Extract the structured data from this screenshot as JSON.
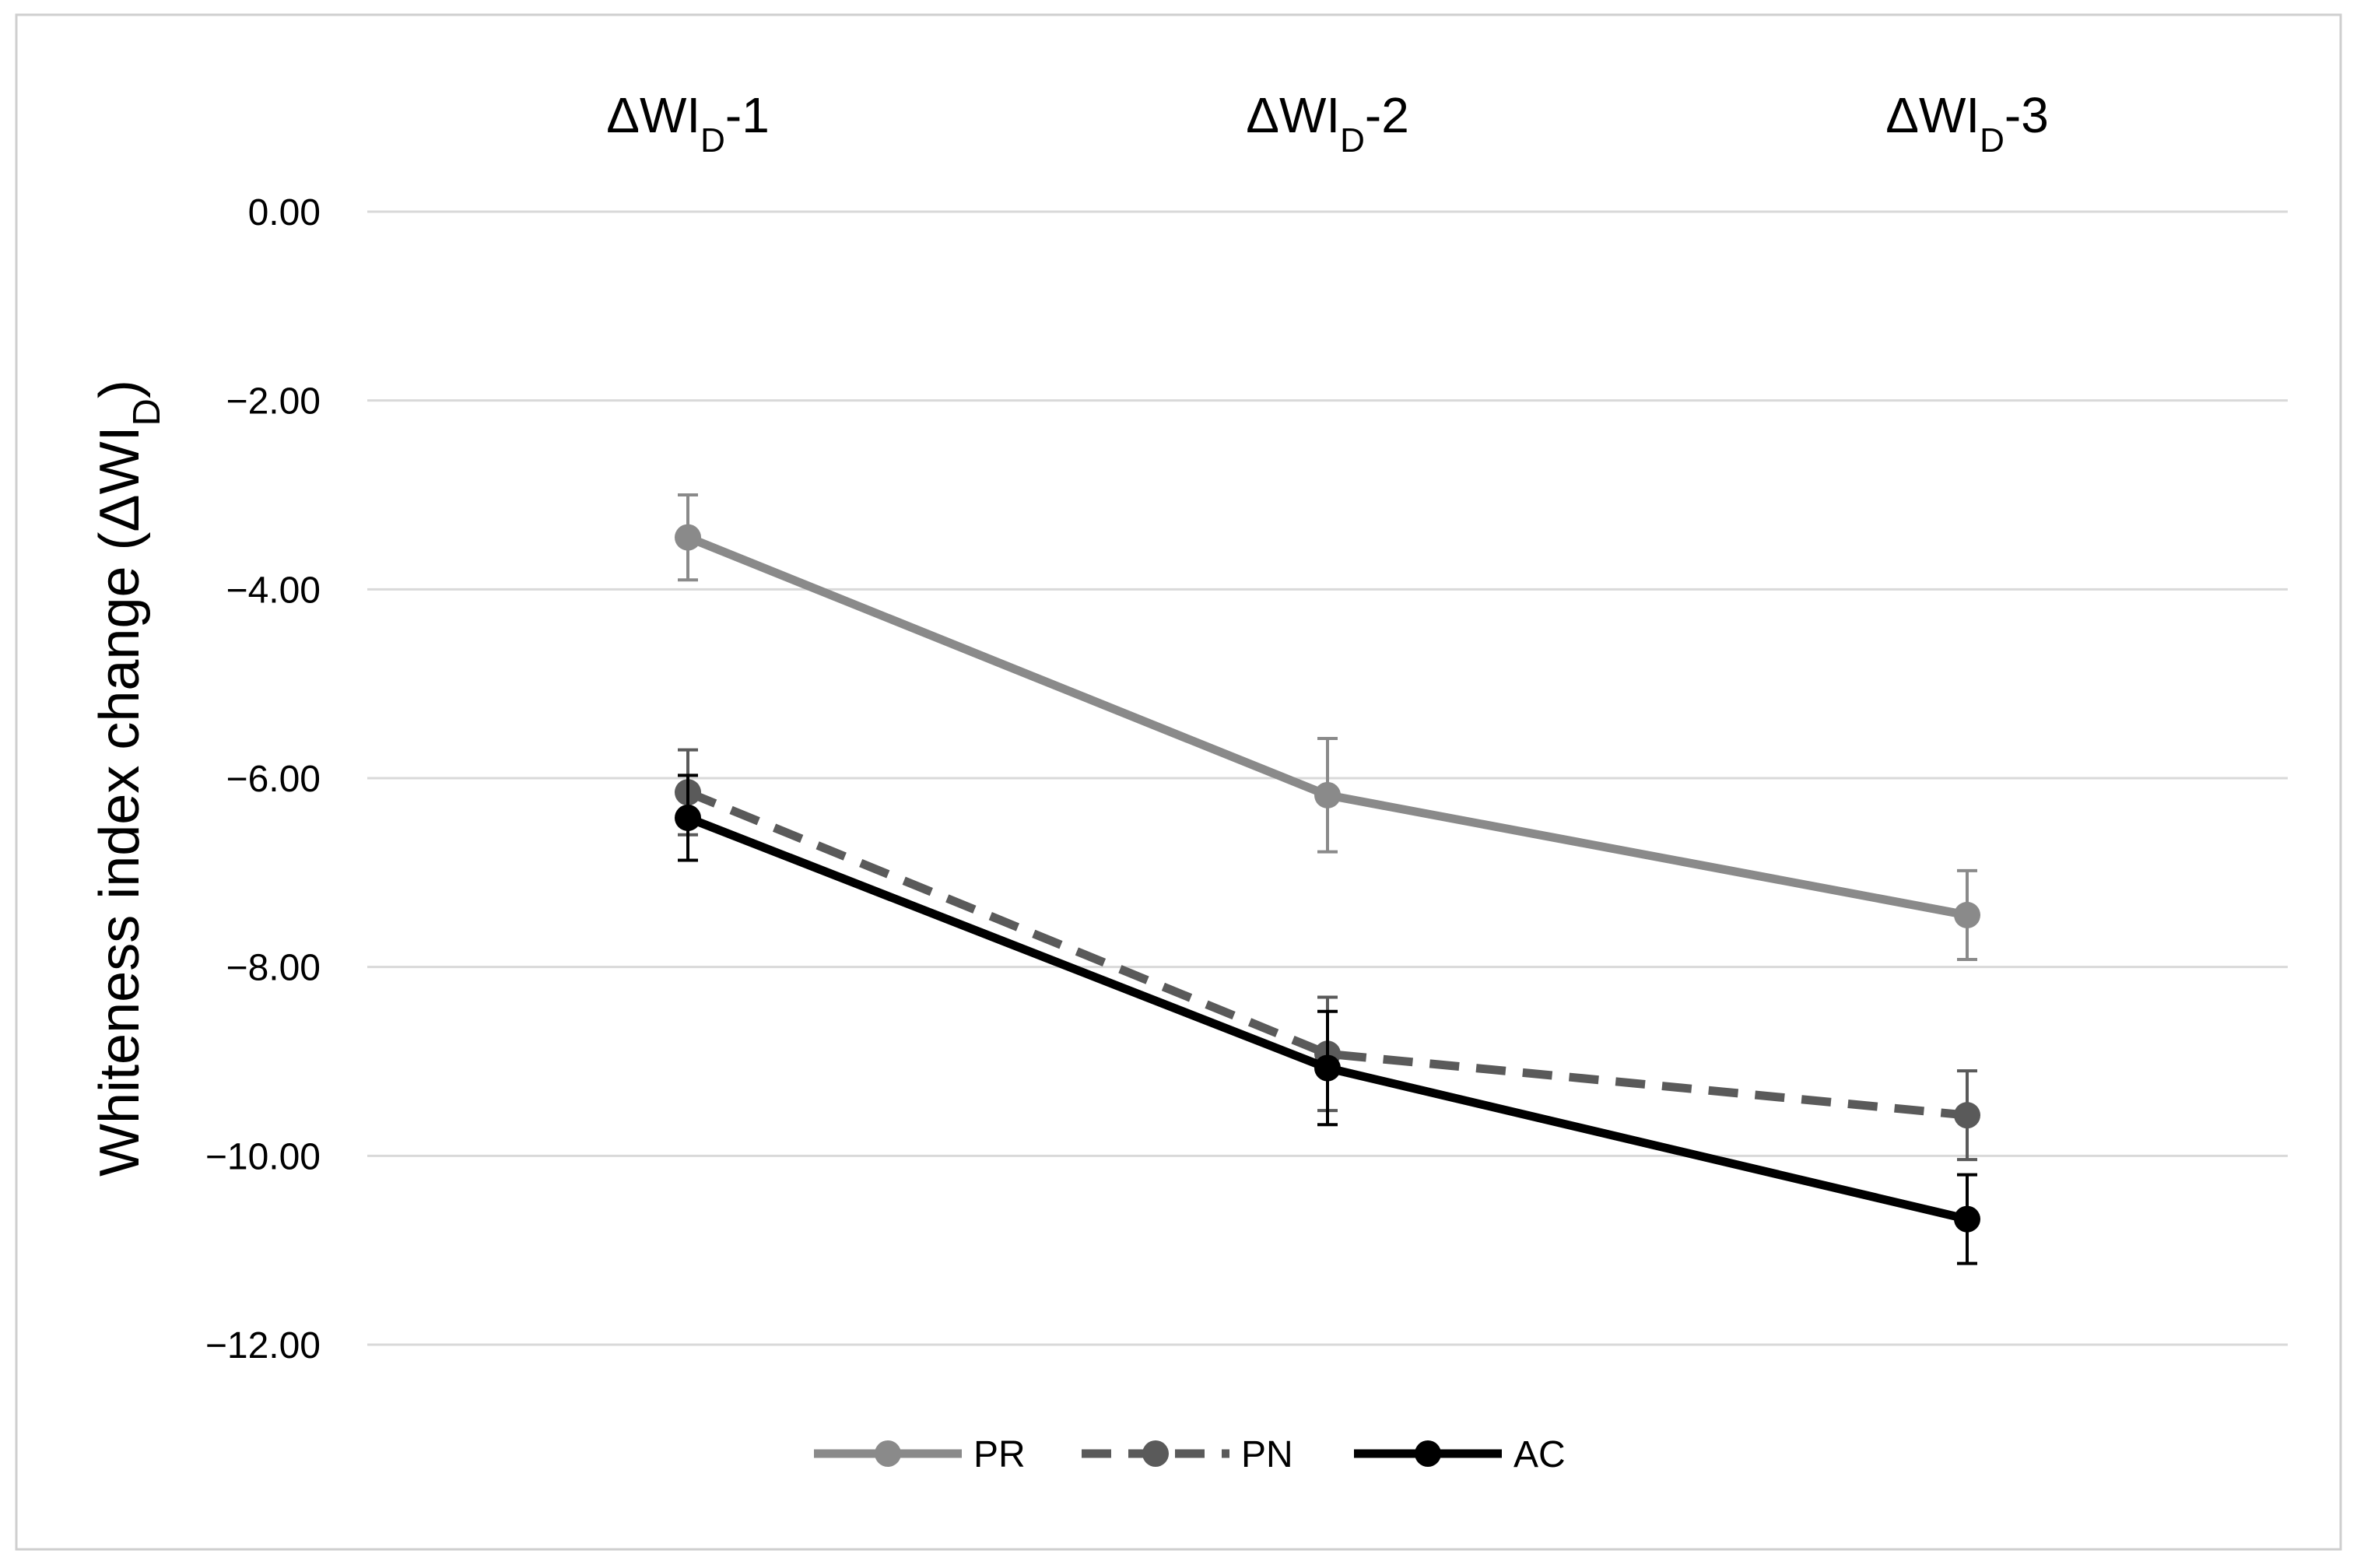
{
  "chart_data": {
    "type": "line",
    "categories": [
      {
        "main": "ΔWI",
        "sub": "D",
        "suffix": "-1"
      },
      {
        "main": "ΔWI",
        "sub": "D",
        "suffix": "-2"
      },
      {
        "main": "ΔWI",
        "sub": "D",
        "suffix": "-3"
      }
    ],
    "ylabel": {
      "main": "Whiteness index change (ΔWI",
      "sub": "D",
      "suffix": ")"
    },
    "y_ticks": [
      "0.00",
      "−2.00",
      "−4.00",
      "−6.00",
      "−8.00",
      "−10.00",
      "−12.00"
    ],
    "ylim": [
      -12,
      0
    ],
    "grid": true,
    "legend_position": "bottom",
    "series": [
      {
        "name": "PR",
        "values": [
          -3.45,
          -6.18,
          -7.45
        ],
        "error": [
          0.45,
          0.6,
          0.47
        ],
        "color": "#8a8a8a",
        "dash": "solid"
      },
      {
        "name": "PN",
        "values": [
          -6.15,
          -8.92,
          -9.57
        ],
        "error": [
          0.45,
          0.6,
          0.47
        ],
        "color": "#5a5a5a",
        "dash": "dashed"
      },
      {
        "name": "AC",
        "values": [
          -6.42,
          -9.07,
          -10.67
        ],
        "error": [
          0.45,
          0.6,
          0.47
        ],
        "color": "#000000",
        "dash": "solid"
      }
    ]
  }
}
